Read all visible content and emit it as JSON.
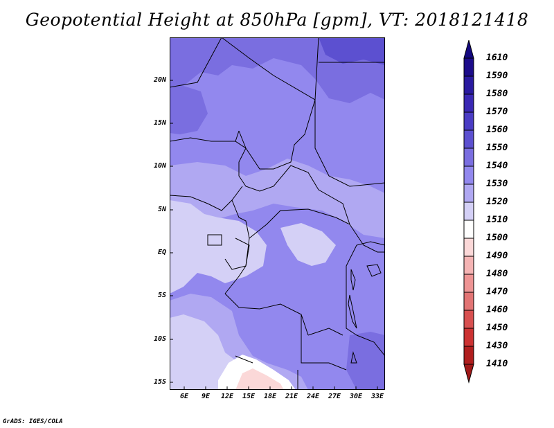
{
  "title": "Geopotential Height at 850hPa [gpm], VT: 2018121418",
  "footer": "GrADS: IGES/COLA",
  "map": {
    "lat_labels": [
      "20N",
      "15N",
      "10N",
      "5N",
      "EQ",
      "5S",
      "10S",
      "15S"
    ],
    "lon_labels": [
      "6E",
      "9E",
      "12E",
      "15E",
      "18E",
      "21E",
      "24E",
      "27E",
      "30E",
      "33E"
    ]
  },
  "colorbar": {
    "levels": [
      "1610",
      "1590",
      "1580",
      "1570",
      "1560",
      "1550",
      "1540",
      "1530",
      "1520",
      "1510",
      "1500",
      "1490",
      "1480",
      "1470",
      "1460",
      "1450",
      "1430",
      "1410"
    ],
    "colors": [
      "#1c0c8a",
      "#2a1aa0",
      "#3a28b4",
      "#4a3cc4",
      "#5c50d0",
      "#7a6ee0",
      "#9288ee",
      "#b0a8f2",
      "#d4d0f6",
      "#ffffff",
      "#fbd8d8",
      "#f5b4b4",
      "#ee9494",
      "#e27474",
      "#d85050",
      "#cc3232",
      "#b01e1e"
    ],
    "top_arrow_color": "#140880",
    "bottom_arrow_color": "#a01818"
  }
}
